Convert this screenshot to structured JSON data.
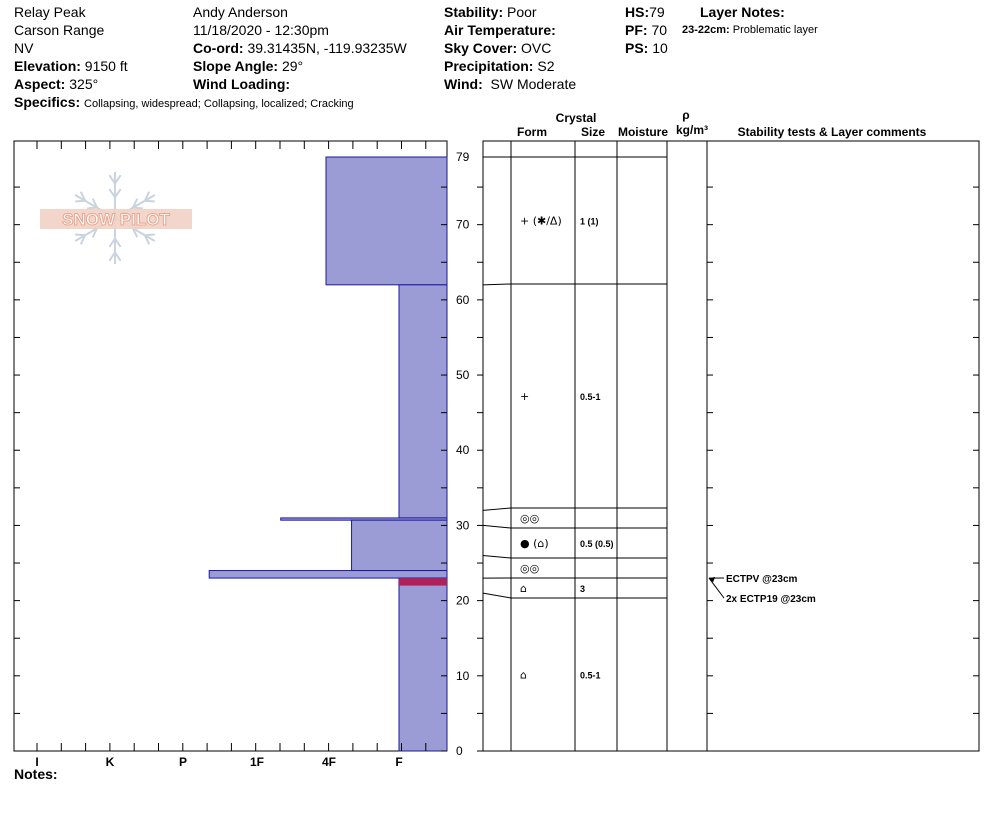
{
  "header": {
    "location": "Relay Peak",
    "range": "Carson Range",
    "state": "NV",
    "elevation_label": "Elevation:",
    "elevation": "9150 ft",
    "aspect_label": "Aspect:",
    "aspect": "325°",
    "specifics_label": "Specifics:",
    "specifics": "Collapsing, widespread;  Collapsing, localized;  Cracking",
    "observer": "Andy Anderson",
    "datetime": "11/18/2020 - 12:30pm",
    "coord_label": "Co-ord:",
    "coord": "39.31435N, -119.93235W",
    "slope_label": "Slope Angle:",
    "slope": "29°",
    "wind_loading_label": "Wind Loading:",
    "stability_label": "Stability:",
    "stability": "Poor",
    "air_temp_label": "Air Temperature:",
    "sky_label": "Sky Cover:",
    "sky": "OVC",
    "precip_label": "Precipitation:",
    "precip": "S2",
    "wind_label": "Wind:",
    "wind": "SW Moderate",
    "hs_label": "HS:",
    "hs": "79",
    "pf_label": "PF:",
    "pf": "70",
    "ps_label": "PS:",
    "ps": "10",
    "layer_notes_label": "Layer Notes:",
    "layer_note_range": "23-22cm:",
    "layer_note_text": "Problematic layer"
  },
  "logo_text": "SNOW PILOT",
  "notes_label": "Notes:",
  "column_headers": {
    "crystal": "Crystal",
    "form": "Form",
    "size": "Size",
    "moisture": "Moisture",
    "rho": "ρ",
    "density_unit": "kg/m³",
    "tests": "Stability tests & Layer comments"
  },
  "colors": {
    "hardness_fill": "#9b9bd6",
    "hardness_edge": "#1a1aa0",
    "problem_layer": "#b0205a"
  },
  "chart_data": {
    "type": "snow-profile",
    "height_axis": {
      "label_ticks": [
        0,
        10,
        20,
        30,
        40,
        50,
        60,
        70,
        79
      ],
      "range": [
        0,
        79
      ],
      "unit": "cm"
    },
    "hardness_axis": {
      "labels": [
        "I",
        "K",
        "P",
        "1F",
        "4F",
        "F"
      ],
      "note": "hand hardness, bar length grows toward left"
    },
    "hardness_layers": [
      {
        "top": 79,
        "bottom": 62,
        "hardness_index": 1.0
      },
      {
        "top": 62,
        "bottom": 31,
        "hardness_index": 0.0
      },
      {
        "top": 31,
        "bottom": 30.7,
        "hardness_index": 1.62
      },
      {
        "top": 30.7,
        "bottom": 24,
        "hardness_index": 0.65
      },
      {
        "top": 24,
        "bottom": 23,
        "hardness_index": 2.6
      },
      {
        "top": 23,
        "bottom": 0,
        "hardness_index": 0.0
      }
    ],
    "problem_layer": {
      "top": 23,
      "bottom": 22
    },
    "layer_boundaries_right": [
      79,
      62,
      32,
      30,
      26,
      23,
      21
    ],
    "layers": [
      {
        "top": 79,
        "bottom": 62,
        "form": "+ (✱/Δ)",
        "size": "1 (1)"
      },
      {
        "top": 62,
        "bottom": 32,
        "form": "+",
        "size": "0.5-1"
      },
      {
        "top": 32,
        "bottom": 30,
        "form": "◎◎",
        "size": ""
      },
      {
        "top": 30,
        "bottom": 26,
        "form": "● (⌂)",
        "size": "0.5 (0.5)"
      },
      {
        "top": 26,
        "bottom": 23,
        "form": "◎◎",
        "size": ""
      },
      {
        "top": 23,
        "bottom": 21,
        "form": "⌂",
        "size": "3"
      },
      {
        "top": 21,
        "bottom": 0,
        "form": "⌂",
        "size": "0.5-1"
      }
    ],
    "stability_tests": [
      {
        "text": "ECTPV @23cm",
        "height": 23
      },
      {
        "text": "2x ECTP19 @23cm",
        "height": 23
      }
    ]
  }
}
